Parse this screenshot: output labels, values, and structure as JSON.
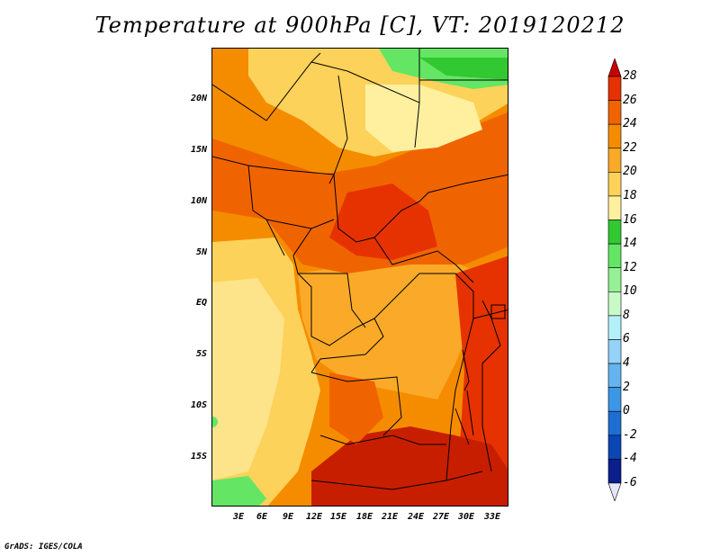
{
  "title": "Temperature at 900hPa [C], VT: 2019120212",
  "credit": "GrADS: IGES/COLA",
  "map": {
    "lat_labels": [
      "20N",
      "15N",
      "10N",
      "5N",
      "EQ",
      "5S",
      "10S",
      "15S"
    ],
    "lon_labels": [
      "3E",
      "6E",
      "9E",
      "12E",
      "15E",
      "18E",
      "21E",
      "24E",
      "27E",
      "30E",
      "33E"
    ]
  },
  "colorbar": {
    "labels": [
      "28",
      "26",
      "24",
      "22",
      "20",
      "18",
      "16",
      "14",
      "12",
      "10",
      "8",
      "6",
      "4",
      "2",
      "0",
      "-2",
      "-4",
      "-6"
    ],
    "colors": [
      "#c80000",
      "#e63200",
      "#f06400",
      "#f58c00",
      "#faaa28",
      "#fdd25a",
      "#fff0a0",
      "#32c832",
      "#64e664",
      "#96f096",
      "#c8fac8",
      "#b4f0fa",
      "#96d2fa",
      "#64b4f0",
      "#3c96e6",
      "#1e6ed2",
      "#0a46b4",
      "#0a1e8c",
      "#000064"
    ],
    "top_arrow_color": "#c80000",
    "bottom_arrow_color": "#e6e6fa"
  },
  "legend_colors": {
    "hot": "#c81e00",
    "warm": "#f06400",
    "mild": "#faaa28",
    "pale": "#fdd25a",
    "cool": "#64e664"
  }
}
